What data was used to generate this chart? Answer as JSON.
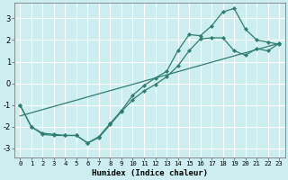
{
  "xlabel": "Humidex (Indice chaleur)",
  "background_color": "#cceef0",
  "grid_color": "#ffffff",
  "line_color": "#2e7d6e",
  "xlim": [
    -0.5,
    23.5
  ],
  "ylim": [
    -3.4,
    3.7
  ],
  "xticks": [
    0,
    1,
    2,
    3,
    4,
    5,
    6,
    7,
    8,
    9,
    10,
    11,
    12,
    13,
    14,
    15,
    16,
    17,
    18,
    19,
    20,
    21,
    22,
    23
  ],
  "yticks": [
    -3,
    -2,
    -1,
    0,
    1,
    2,
    3
  ],
  "line1_x": [
    0,
    1,
    2,
    3,
    4,
    5,
    6,
    7,
    8,
    9,
    10,
    11,
    12,
    13,
    14,
    15,
    16,
    17,
    18,
    19,
    20,
    21,
    22,
    23
  ],
  "line1_y": [
    -1.0,
    -2.0,
    -2.3,
    -2.35,
    -2.4,
    -2.4,
    -2.75,
    -2.45,
    -1.85,
    -1.25,
    -0.55,
    -0.1,
    0.25,
    0.55,
    1.5,
    2.25,
    2.2,
    2.65,
    3.3,
    3.45,
    2.5,
    2.0,
    1.9,
    1.8
  ],
  "line2_x": [
    0,
    23
  ],
  "line2_y": [
    -1.5,
    1.85
  ],
  "line3_x": [
    0,
    1,
    2,
    3,
    4,
    5,
    6,
    7,
    8,
    9,
    10,
    11,
    12,
    13,
    14,
    15,
    16,
    17,
    18,
    19,
    20,
    21,
    22,
    23
  ],
  "line3_y": [
    -1.0,
    -2.0,
    -2.35,
    -2.4,
    -2.4,
    -2.4,
    -2.75,
    -2.5,
    -1.9,
    -1.3,
    -0.75,
    -0.35,
    -0.05,
    0.3,
    0.8,
    1.5,
    2.05,
    2.1,
    2.1,
    1.5,
    1.3,
    1.6,
    1.5,
    1.85
  ]
}
